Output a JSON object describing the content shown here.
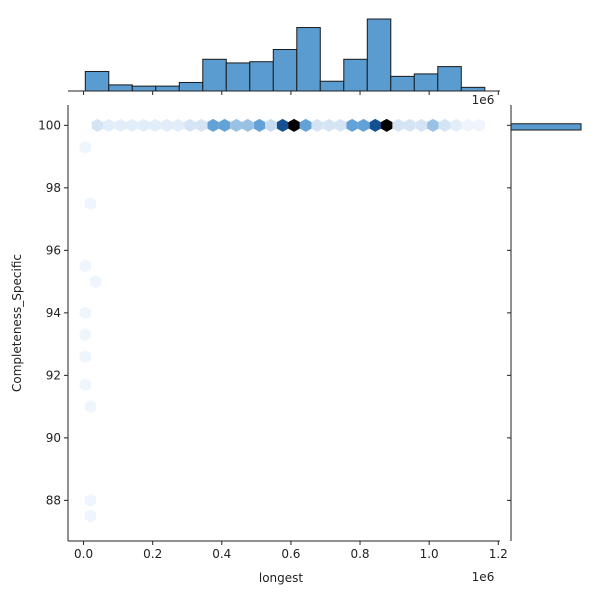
{
  "chart_data": {
    "type": "hexbin-joint",
    "xlabel": "longest",
    "ylabel": "Completeness_Specific",
    "x_offset_label": "1e6",
    "top_offset_label": "1e6",
    "xlim": [
      -45000,
      1205000
    ],
    "ylim": [
      86.7,
      100.65
    ],
    "x_ticks": [
      0.0,
      0.2,
      0.4,
      0.6,
      0.8,
      1.0,
      1.2
    ],
    "x_tick_labels": [
      "0.0",
      "0.2",
      "0.4",
      "0.6",
      "0.8",
      "1.0",
      "1.2"
    ],
    "y_ticks": [
      88,
      90,
      92,
      94,
      96,
      98,
      100
    ],
    "y_tick_labels": [
      "88",
      "90",
      "92",
      "94",
      "96",
      "98",
      "100"
    ],
    "grid": false,
    "colors": {
      "bar_fill": "#5a9bd0",
      "bar_edge": "#1a1a1a",
      "hex_min": "#eef5fc",
      "hex_max": "#08306b",
      "hex_peak": "#000000"
    },
    "hex_row_100": {
      "y": 100,
      "x": [
        40000,
        73000,
        107000,
        140000,
        174000,
        207000,
        241000,
        274000,
        308000,
        341000,
        375000,
        408000,
        442000,
        475000,
        509000,
        542000,
        576000,
        609000,
        643000,
        676000,
        710000,
        743000,
        777000,
        810000,
        844000,
        877000,
        911000,
        944000,
        978000,
        1011000,
        1045000,
        1078000,
        1112000,
        1145000
      ],
      "counts": [
        3,
        2,
        2,
        2,
        2,
        2,
        2,
        2,
        3,
        3,
        6,
        6,
        5,
        5,
        6,
        4,
        9,
        10,
        6,
        3,
        3,
        3,
        6,
        6,
        9,
        10,
        3,
        3,
        3,
        5,
        3,
        2,
        1,
        1
      ]
    },
    "hex_low": [
      {
        "x": 5000,
        "y": 99.3,
        "count": 1
      },
      {
        "x": 20000,
        "y": 97.5,
        "count": 1
      },
      {
        "x": 5000,
        "y": 95.5,
        "count": 1
      },
      {
        "x": 35000,
        "y": 95.0,
        "count": 1
      },
      {
        "x": 5000,
        "y": 94.0,
        "count": 1
      },
      {
        "x": 5000,
        "y": 93.3,
        "count": 1
      },
      {
        "x": 5000,
        "y": 92.6,
        "count": 1
      },
      {
        "x": 5000,
        "y": 91.7,
        "count": 1
      },
      {
        "x": 20000,
        "y": 91.0,
        "count": 1
      },
      {
        "x": 20000,
        "y": 88.0,
        "count": 1
      },
      {
        "x": 20000,
        "y": 87.5,
        "count": 1
      }
    ],
    "marginal_x": {
      "bin_edges": [
        5000,
        73000,
        141000,
        209000,
        277000,
        345000,
        413000,
        481000,
        549000,
        617000,
        685000,
        753000,
        821000,
        889000,
        957000,
        1025000,
        1093000,
        1161000
      ],
      "counts": [
        8,
        2.5,
        2,
        2,
        3.5,
        13,
        11.5,
        12,
        17,
        26,
        4,
        13,
        29.5,
        6,
        7,
        10,
        1.5
      ]
    },
    "marginal_y": {
      "bin": [
        99.85,
        100.05
      ],
      "count": 100
    }
  }
}
